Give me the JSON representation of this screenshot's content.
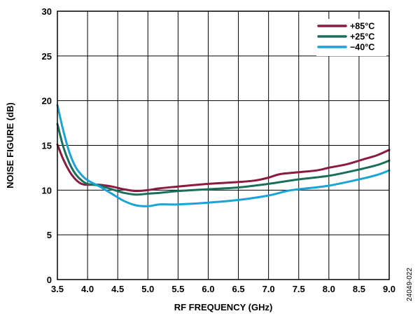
{
  "chart_data": {
    "type": "line",
    "title": "",
    "xlabel": "RF FREQUENCY (GHz)",
    "ylabel": "NOISE FIGURE (dB)",
    "xlim": [
      3.5,
      9.0
    ],
    "ylim": [
      0,
      30
    ],
    "x_ticks": [
      3.5,
      4.0,
      4.5,
      5.0,
      5.5,
      6.0,
      6.5,
      7.0,
      7.5,
      8.0,
      8.5,
      9.0
    ],
    "x_tick_labels": [
      "3.5",
      "4.0",
      "4.5",
      "5.0",
      "5.5",
      "6.0",
      "6.5",
      "7.0",
      "7.5",
      "8.0",
      "8.5",
      "9.0"
    ],
    "y_ticks": [
      0,
      5,
      10,
      15,
      20,
      25,
      30
    ],
    "y_tick_labels": [
      "0",
      "5",
      "10",
      "15",
      "20",
      "25",
      "30"
    ],
    "grid": true,
    "legend_position": "top-right",
    "figure_id": "24049-022",
    "series": [
      {
        "name": "+85°C",
        "color": "#8b1a3e",
        "x": [
          3.5,
          3.6,
          3.7,
          3.8,
          3.9,
          4.0,
          4.2,
          4.4,
          4.6,
          4.8,
          5.0,
          5.2,
          5.5,
          6.0,
          6.5,
          6.8,
          7.0,
          7.2,
          7.5,
          7.8,
          8.0,
          8.3,
          8.6,
          8.8,
          9.0
        ],
        "y": [
          15.1,
          13.4,
          12.1,
          11.2,
          10.7,
          10.6,
          10.6,
          10.4,
          10.1,
          9.9,
          10.0,
          10.2,
          10.4,
          10.7,
          10.9,
          11.1,
          11.4,
          11.8,
          12.0,
          12.2,
          12.5,
          12.9,
          13.5,
          13.9,
          14.5
        ]
      },
      {
        "name": "+25°C",
        "color": "#1a6e5c",
        "x": [
          3.5,
          3.6,
          3.7,
          3.8,
          3.9,
          4.0,
          4.2,
          4.4,
          4.6,
          4.8,
          5.0,
          5.2,
          5.5,
          6.0,
          6.5,
          7.0,
          7.5,
          8.0,
          8.5,
          8.8,
          9.0
        ],
        "y": [
          17.4,
          14.8,
          13.0,
          11.8,
          11.1,
          10.7,
          10.5,
          10.1,
          9.7,
          9.5,
          9.6,
          9.7,
          9.9,
          10.1,
          10.3,
          10.7,
          11.2,
          11.6,
          12.3,
          12.8,
          13.3
        ]
      },
      {
        "name": "−40°C",
        "color": "#1aa3d6",
        "x": [
          3.5,
          3.6,
          3.7,
          3.8,
          3.9,
          4.0,
          4.2,
          4.4,
          4.6,
          4.8,
          5.0,
          5.2,
          5.5,
          6.0,
          6.5,
          7.0,
          7.3,
          7.5,
          8.0,
          8.5,
          8.8,
          9.0
        ],
        "y": [
          19.5,
          16.6,
          14.2,
          12.6,
          11.7,
          11.1,
          10.4,
          9.6,
          8.8,
          8.3,
          8.2,
          8.4,
          8.4,
          8.6,
          8.9,
          9.4,
          9.9,
          10.1,
          10.5,
          11.2,
          11.7,
          12.2
        ]
      }
    ]
  }
}
